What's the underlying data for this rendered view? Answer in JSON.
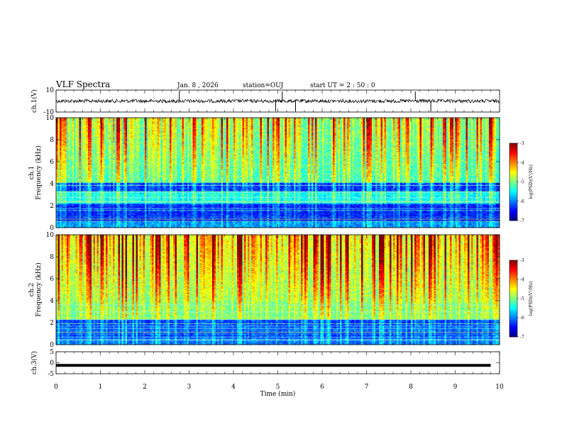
{
  "header": {
    "title": "VLF Spectra",
    "date": "Jan. 8 , 2026",
    "station": "station=OUJ",
    "start": "start UT = 2 : 50 : 0"
  },
  "chart_data": [
    {
      "name": "ch1-waveform",
      "type": "line",
      "ylabel": "ch.1(V)",
      "ylim": [
        -10,
        10
      ],
      "yticks": [
        "10",
        "-10"
      ],
      "xlim": [
        0,
        10
      ],
      "baseline_value": 0,
      "spike_times_min": [
        2.78,
        4.95,
        5.1,
        5.4,
        8.1,
        8.45
      ]
    },
    {
      "name": "ch1-spectrogram",
      "type": "heatmap",
      "ylabel_channel": "ch.1",
      "ylabel": "Frequency (kHz)",
      "ylim": [
        0,
        10
      ],
      "yticks": [
        "0",
        "2",
        "4",
        "6",
        "8",
        "10"
      ],
      "xlim": [
        0,
        10
      ],
      "colorbar": {
        "label": "log(PSD)(V²/Hz)",
        "range": [
          -7,
          -3
        ],
        "ticks": [
          "-3",
          "-4",
          "-5",
          "-6",
          "-7"
        ]
      }
    },
    {
      "name": "ch2-spectrogram",
      "type": "heatmap",
      "ylabel_channel": "ch.2",
      "ylabel": "Frequency (kHz)",
      "ylim": [
        0,
        10
      ],
      "yticks": [
        "0",
        "2",
        "4",
        "6",
        "8",
        "10"
      ],
      "xlim": [
        0,
        10
      ],
      "colorbar": {
        "label": "log(PSD)(V²/Hz)",
        "range": [
          -7,
          -3
        ],
        "ticks": [
          "-3",
          "-4",
          "-5",
          "-6",
          "-7"
        ]
      }
    },
    {
      "name": "ch3-waveform",
      "type": "line",
      "ylabel": "ch.3(V)",
      "ylim": [
        -5,
        5
      ],
      "yticks": [
        "5",
        "0",
        "-5"
      ],
      "xlim": [
        0,
        10
      ],
      "baseline_value": -1.2
    }
  ],
  "xaxis": {
    "label": "Time (min)",
    "ticks": [
      "0",
      "1",
      "2",
      "3",
      "4",
      "5",
      "6",
      "7",
      "8",
      "9",
      "10"
    ]
  },
  "colors": {
    "spectrum_low": "#0000a0",
    "spectrum_mid": "#00ffff",
    "spectrum_high": "#ff0000"
  }
}
